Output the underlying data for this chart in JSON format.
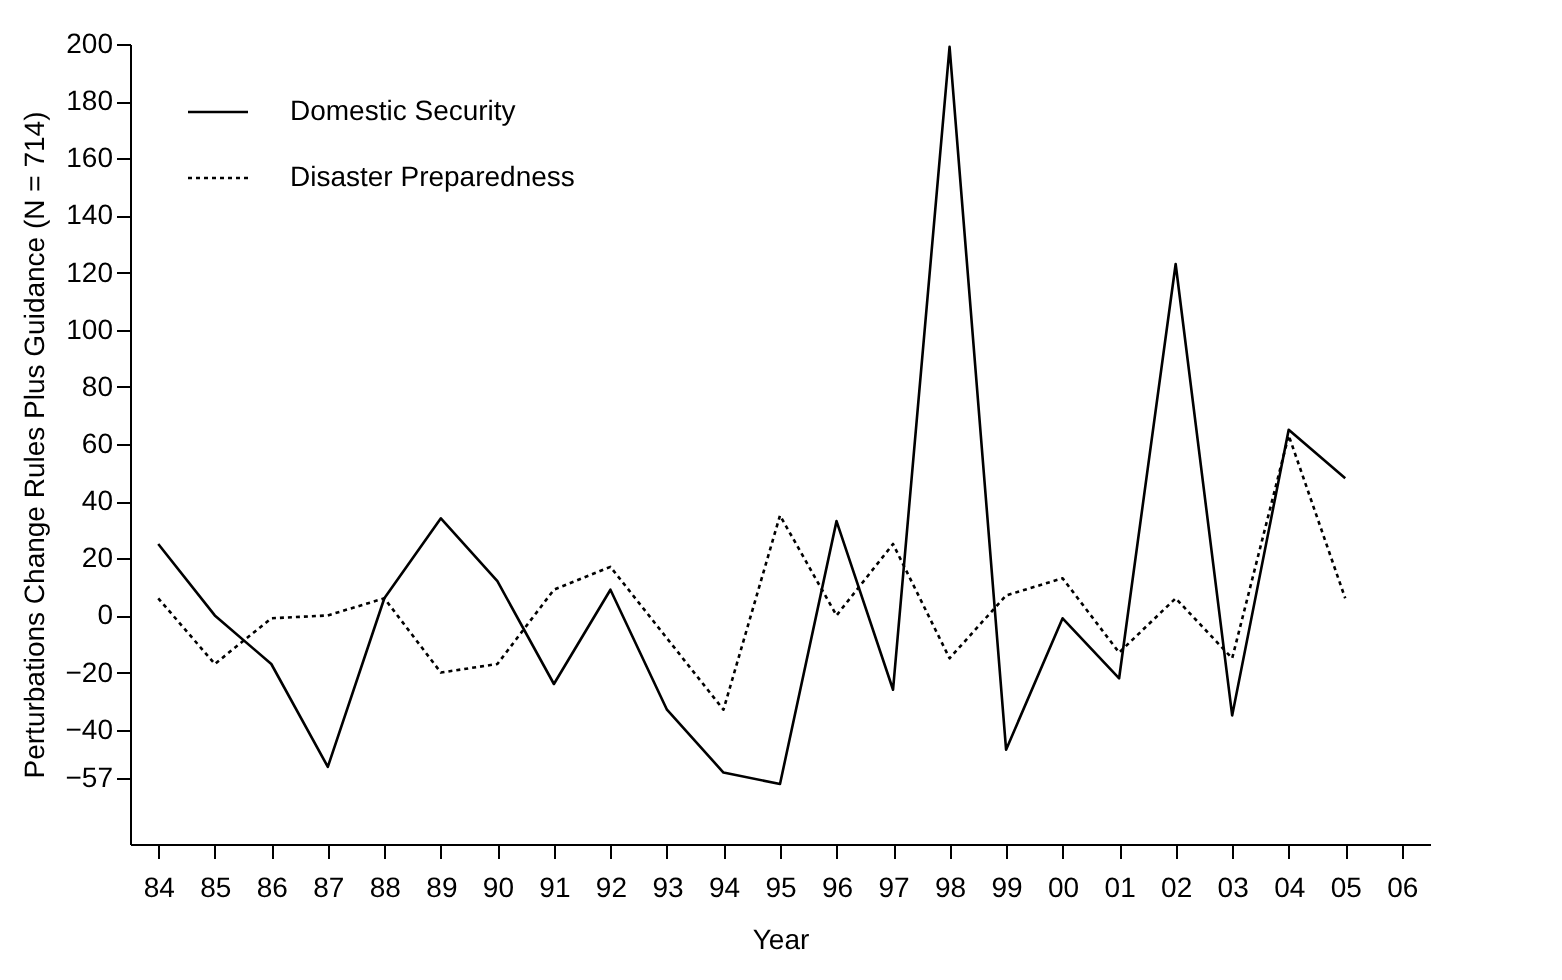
{
  "chart_data": {
    "type": "line",
    "xlabel": "Year",
    "ylabel": "Perturbations Change Rules Plus Guidance (N = 714)",
    "categories": [
      "84",
      "85",
      "86",
      "87",
      "88",
      "89",
      "90",
      "91",
      "92",
      "93",
      "94",
      "95",
      "96",
      "97",
      "98",
      "99",
      "00",
      "01",
      "02",
      "03",
      "04",
      "05",
      "06"
    ],
    "series": [
      {
        "name": "Domestic Security",
        "color": "#000000",
        "line_style": "solid",
        "values": [
          25,
          0,
          -17,
          -53,
          6,
          34,
          12,
          -24,
          9,
          -33,
          -55,
          -59,
          33,
          -26,
          199,
          -47,
          -1,
          -22,
          123,
          -35,
          65,
          48,
          null
        ]
      },
      {
        "name": "Disaster Preparedness",
        "color": "#000000",
        "line_style": "dotted",
        "values": [
          6,
          -17,
          -1,
          0,
          6,
          -20,
          -17,
          9,
          17,
          -8,
          -33,
          35,
          0,
          25,
          -15,
          7,
          13,
          -13,
          6,
          -15,
          63,
          6,
          null
        ]
      }
    ],
    "ylim": [
      -80,
      200
    ],
    "yticks": [
      -57,
      -40,
      -20,
      0,
      20,
      40,
      60,
      80,
      100,
      120,
      140,
      160,
      180,
      200
    ],
    "grid": false,
    "legend": "top left",
    "marker": "none"
  }
}
